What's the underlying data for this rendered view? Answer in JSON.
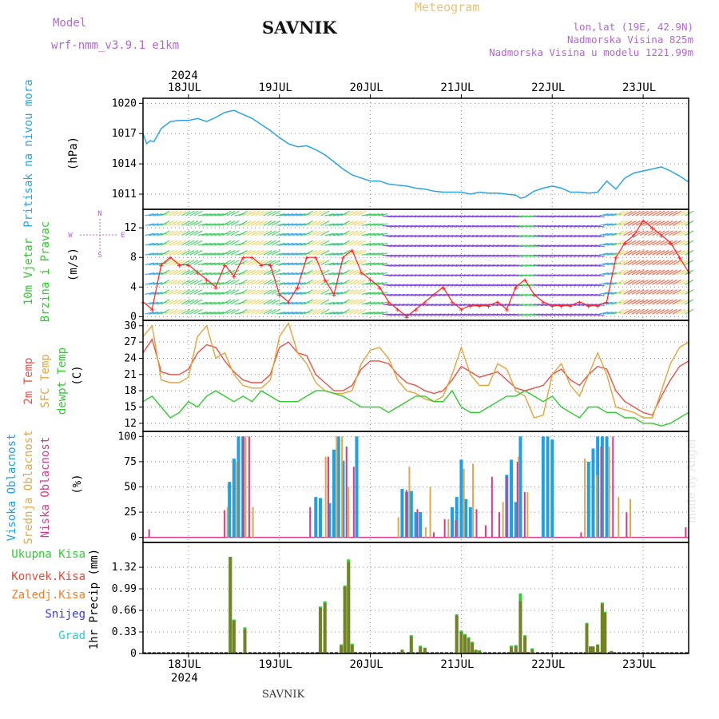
{
  "header": {
    "model_label": "Model",
    "model_name": "wrf-nmm_v3.9.1 e1km",
    "title": "SAVNIK",
    "meteogram": "Meteogram",
    "lonlat": "lon,lat (19E, 42.9N)",
    "elevation": "Nadmorska Visina 825m",
    "model_elevation": "Nadmorska Visina u modelu 1221.99m",
    "year": "2024"
  },
  "footer": {
    "station": "SAVNIK",
    "credit": "made by Angel"
  },
  "colors": {
    "pressure": "#2aa4e6",
    "temp2m": "#e8524a",
    "sfc": "#e3a43a",
    "dewpt": "#2ecc2e",
    "cloud_high": "#1e9fe6",
    "cloud_mid": "#e0a84a",
    "cloud_low": "#d63a8a",
    "rain_total": "#33cc33",
    "rain_conv": "#e84a3a",
    "rain_frz": "#f08030",
    "snow": "#3a3ae0",
    "graupel": "#30c8c8",
    "wind_trace": "#ff2020"
  },
  "chart_data": [
    {
      "type": "line",
      "panel": "pressure",
      "ylabel_lines": [
        "Pritisak na nivou mora",
        "(hPa)"
      ],
      "x_tick_labels": [
        "18JUL",
        "19JUL",
        "20JUL",
        "21JUL",
        "22JUL",
        "23JUL"
      ],
      "x_range_days": [
        -0.5,
        5.5
      ],
      "ylim": [
        1009.5,
        1020.5
      ],
      "yticks": [
        1011,
        1014,
        1017,
        1020
      ],
      "grid": true,
      "series": [
        {
          "x": [
            -0.5,
            -0.46,
            -0.42,
            -0.38,
            -0.3,
            -0.2,
            -0.1,
            0,
            0.1,
            0.2,
            0.3,
            0.4,
            0.5,
            0.6,
            0.7,
            0.8,
            0.9,
            1.0,
            1.1,
            1.2,
            1.3,
            1.4,
            1.5,
            1.6,
            1.7,
            1.8,
            1.9,
            2.0,
            2.1,
            2.2,
            2.3,
            2.4,
            2.5,
            2.6,
            2.7,
            2.8,
            2.9,
            3.0,
            3.1,
            3.2,
            3.3,
            3.4,
            3.5,
            3.6,
            3.65,
            3.7,
            3.8,
            3.9,
            4.0,
            4.1,
            4.2,
            4.3,
            4.4,
            4.5,
            4.6,
            4.7,
            4.8,
            4.9,
            5.0,
            5.1,
            5.2,
            5.3,
            5.4,
            5.5
          ],
          "y": [
            1017,
            1016,
            1016.3,
            1016.2,
            1017.5,
            1018.2,
            1018.3,
            1018.3,
            1018.5,
            1018.2,
            1018.6,
            1019.1,
            1019.3,
            1018.9,
            1018.5,
            1017.9,
            1017.3,
            1016.6,
            1016,
            1015.7,
            1015.8,
            1015.4,
            1014.9,
            1014.2,
            1013.5,
            1012.9,
            1012.6,
            1012.3,
            1012.3,
            1012.0,
            1011.9,
            1011.8,
            1011.6,
            1011.5,
            1011.3,
            1011.2,
            1011.2,
            1011.2,
            1011.0,
            1011.2,
            1011.1,
            1011.1,
            1011.0,
            1010.9,
            1010.6,
            1010.7,
            1011.3,
            1011.6,
            1011.8,
            1011.6,
            1011.2,
            1011.2,
            1011.1,
            1011.2,
            1012.3,
            1011.5,
            1012.6,
            1013.1,
            1013.3,
            1013.5,
            1013.7,
            1013.3,
            1012.8,
            1012.2
          ]
        }
      ]
    },
    {
      "type": "line",
      "panel": "wind",
      "ylabel_lines": [
        "10m Vjetar",
        "Brzina i Pravac",
        "(m/s)"
      ],
      "compass": [
        "N",
        "W",
        "E",
        "S"
      ],
      "ylim": [
        -0.5,
        14.5
      ],
      "yticks": [
        0,
        4,
        8,
        12
      ],
      "series": [
        {
          "name": "speed",
          "x": [
            -0.5,
            -0.4,
            -0.3,
            -0.2,
            -0.1,
            0,
            0.1,
            0.2,
            0.3,
            0.4,
            0.5,
            0.6,
            0.7,
            0.8,
            0.9,
            1.0,
            1.1,
            1.2,
            1.3,
            1.4,
            1.5,
            1.6,
            1.7,
            1.8,
            1.9,
            2.0,
            2.1,
            2.2,
            2.3,
            2.4,
            2.5,
            2.6,
            2.7,
            2.8,
            2.9,
            3.0,
            3.1,
            3.2,
            3.3,
            3.4,
            3.5,
            3.6,
            3.7,
            3.8,
            3.9,
            4.0,
            4.1,
            4.2,
            4.3,
            4.4,
            4.5,
            4.6,
            4.7,
            4.8,
            4.9,
            5.0,
            5.1,
            5.2,
            5.3,
            5.4,
            5.5
          ],
          "y": [
            2,
            1,
            7,
            8,
            7,
            7,
            6,
            5,
            4,
            7,
            5.5,
            8,
            8,
            7,
            7,
            3,
            2,
            4,
            8,
            8,
            5,
            3,
            8,
            9,
            6,
            5,
            4,
            2,
            1,
            0,
            1,
            2,
            3,
            4,
            2,
            1,
            1.5,
            1.5,
            1.5,
            2,
            1,
            4,
            5,
            3,
            2,
            1.5,
            1.5,
            1.5,
            2,
            1.5,
            1.5,
            2,
            8,
            10,
            11,
            13,
            12,
            11,
            10,
            8,
            6
          ]
        }
      ]
    },
    {
      "type": "line",
      "panel": "temperature",
      "ylabel_lines": [
        "2m Temp",
        "SFC Temp",
        "dewpt Temp",
        "(C)"
      ],
      "ylim": [
        10.5,
        31
      ],
      "yticks": [
        12,
        15,
        18,
        21,
        24,
        27,
        30
      ],
      "series": [
        {
          "name": "2m Temp",
          "x": [
            -0.5,
            -0.4,
            -0.3,
            -0.2,
            -0.1,
            0,
            0.1,
            0.2,
            0.3,
            0.4,
            0.5,
            0.6,
            0.7,
            0.8,
            0.9,
            1.0,
            1.1,
            1.2,
            1.3,
            1.4,
            1.5,
            1.6,
            1.7,
            1.8,
            1.9,
            2.0,
            2.1,
            2.2,
            2.3,
            2.4,
            2.5,
            2.6,
            2.7,
            2.8,
            2.9,
            3.0,
            3.1,
            3.2,
            3.3,
            3.4,
            3.5,
            3.6,
            3.7,
            3.8,
            3.9,
            4.0,
            4.1,
            4.2,
            4.3,
            4.4,
            4.5,
            4.6,
            4.7,
            4.8,
            4.9,
            5.0,
            5.1,
            5.2,
            5.3,
            5.4,
            5.5
          ],
          "y": [
            25,
            27.5,
            21.5,
            21,
            21,
            22,
            25,
            26.5,
            26,
            23.5,
            21.5,
            20,
            19.5,
            19.5,
            21,
            26,
            27,
            25,
            24.5,
            21,
            19.5,
            18,
            18,
            19,
            22,
            23.5,
            23.5,
            23,
            21,
            19.5,
            19,
            18,
            17.5,
            18,
            20,
            22.5,
            21.5,
            20.5,
            21,
            21.5,
            20,
            18.5,
            18,
            18.5,
            19,
            21,
            22,
            20,
            19,
            21,
            22.5,
            22,
            18,
            16,
            15,
            14,
            13.5,
            17,
            20,
            22.5,
            23.5
          ]
        },
        {
          "name": "SFC Temp",
          "x": [
            -0.5,
            -0.4,
            -0.3,
            -0.2,
            -0.1,
            0,
            0.1,
            0.2,
            0.3,
            0.4,
            0.5,
            0.6,
            0.7,
            0.8,
            0.9,
            1.0,
            1.1,
            1.2,
            1.3,
            1.4,
            1.5,
            1.6,
            1.7,
            1.8,
            1.9,
            2.0,
            2.1,
            2.2,
            2.3,
            2.4,
            2.5,
            2.6,
            2.7,
            2.8,
            2.9,
            3.0,
            3.1,
            3.2,
            3.3,
            3.4,
            3.5,
            3.6,
            3.7,
            3.8,
            3.9,
            4.0,
            4.1,
            4.2,
            4.3,
            4.4,
            4.5,
            4.6,
            4.7,
            4.8,
            4.9,
            5.0,
            5.1,
            5.2,
            5.3,
            5.4,
            5.5
          ],
          "y": [
            28,
            30,
            20,
            19.5,
            19.5,
            20.5,
            28,
            30,
            24,
            25,
            21,
            19,
            18.5,
            18.5,
            20,
            28,
            30.5,
            25,
            23,
            19.5,
            18,
            17.5,
            17.5,
            18,
            23,
            25.5,
            26,
            24,
            20,
            18,
            17.5,
            16.5,
            16,
            17,
            21,
            26,
            21,
            19,
            19,
            23,
            22,
            18,
            17,
            13,
            13.5,
            21,
            23,
            19,
            17,
            21,
            25,
            21,
            15,
            14.5,
            14,
            13,
            13,
            18,
            23,
            26,
            27
          ]
        },
        {
          "name": "dewpt Temp",
          "x": [
            -0.5,
            -0.4,
            -0.3,
            -0.2,
            -0.1,
            0,
            0.1,
            0.2,
            0.3,
            0.4,
            0.5,
            0.6,
            0.7,
            0.8,
            0.9,
            1.0,
            1.1,
            1.2,
            1.3,
            1.4,
            1.5,
            1.6,
            1.7,
            1.8,
            1.9,
            2.0,
            2.1,
            2.2,
            2.3,
            2.4,
            2.5,
            2.6,
            2.7,
            2.8,
            2.9,
            3.0,
            3.1,
            3.2,
            3.3,
            3.4,
            3.5,
            3.6,
            3.7,
            3.8,
            3.9,
            4.0,
            4.1,
            4.2,
            4.3,
            4.4,
            4.5,
            4.6,
            4.7,
            4.8,
            4.9,
            5.0,
            5.1,
            5.2,
            5.3,
            5.4,
            5.5
          ],
          "y": [
            16,
            17,
            15,
            13,
            14,
            16,
            15,
            17,
            18,
            17,
            16,
            17,
            16,
            18,
            17,
            16,
            16,
            16,
            17,
            18,
            18,
            17.5,
            17,
            16,
            15,
            15,
            15,
            14,
            15,
            16,
            17,
            17,
            16,
            16,
            18,
            15,
            14,
            14,
            15,
            16,
            17,
            17,
            18,
            17,
            16,
            17,
            15,
            14,
            13,
            15,
            15,
            14,
            14,
            13,
            13,
            12,
            12,
            11.5,
            12,
            13,
            14
          ]
        }
      ]
    },
    {
      "type": "bar",
      "panel": "clouds",
      "ylabel_lines": [
        "Visoka Oblacnost",
        "Srednja Oblacnost",
        "Niska Oblacnost",
        "(%)"
      ],
      "ylim": [
        -5,
        105
      ],
      "yticks": [
        0,
        25,
        50,
        75,
        100
      ],
      "series": [
        {
          "name": "Visoka Oblacnost",
          "x": [
            0.45,
            0.5,
            0.55,
            0.6,
            1.4,
            1.45,
            1.55,
            1.6,
            1.65,
            1.7,
            1.85,
            2.35,
            2.4,
            2.45,
            2.5,
            2.55,
            2.9,
            2.95,
            3.0,
            3.05,
            3.1,
            3.5,
            3.55,
            3.6,
            3.65,
            3.9,
            3.95,
            4.0,
            4.4,
            4.45,
            4.5,
            4.55,
            4.6
          ],
          "y": [
            55,
            78,
            100,
            100,
            40,
            39,
            34,
            87,
            100,
            76,
            100,
            48,
            45,
            46,
            25,
            25,
            30,
            40,
            77,
            38,
            30,
            62,
            77,
            35,
            100,
            100,
            100,
            97,
            75,
            88,
            100,
            100,
            100
          ]
        },
        {
          "name": "Srednja Oblacnost",
          "x": [
            0.42,
            0.52,
            0.62,
            0.7,
            1.5,
            1.62,
            1.68,
            1.75,
            2.3,
            2.42,
            2.6,
            2.65,
            2.85,
            3.02,
            3.12,
            3.45,
            3.62,
            3.72,
            4.35,
            4.48,
            4.62,
            4.72,
            4.85
          ],
          "y": [
            30,
            75,
            100,
            30,
            80,
            100,
            100,
            50,
            20,
            70,
            10,
            50,
            18,
            68,
            73,
            35,
            80,
            45,
            78,
            62,
            90,
            40,
            38
          ]
        },
        {
          "name": "Niska Oblacnost",
          "x": [
            -0.45,
            0.38,
            0.58,
            0.65,
            1.32,
            1.52,
            1.72,
            1.8,
            2.38,
            2.5,
            2.68,
            2.8,
            2.92,
            3.15,
            3.25,
            3.32,
            3.4,
            3.48,
            3.6,
            3.68,
            4.3,
            4.52,
            4.65,
            4.8,
            5.45
          ],
          "y": [
            8,
            27,
            100,
            100,
            30,
            80,
            90,
            70,
            47,
            28,
            5,
            18,
            17,
            28,
            12,
            60,
            25,
            60,
            75,
            45,
            5,
            90,
            100,
            25,
            10
          ]
        }
      ]
    },
    {
      "type": "bar",
      "panel": "precipitation",
      "ylabel_lines": [
        "1hr Precip (mm)"
      ],
      "legend": [
        "Ukupna Kisa",
        "Konvek.Kisa",
        "Zaledj.Kisa",
        "Snijeg",
        "Grad"
      ],
      "ylim": [
        0,
        1.7
      ],
      "yticks": [
        0,
        0.33,
        0.66,
        0.99,
        1.32
      ],
      "yticklabels": [
        "0",
        "0.33",
        "0.66",
        "0.99",
        "1.32"
      ],
      "series": [
        {
          "name": "Ukupna Kisa",
          "x": [
            0.46,
            0.5,
            0.62,
            1.45,
            1.5,
            1.68,
            1.72,
            1.76,
            1.8,
            2.35,
            2.45,
            2.55,
            2.6,
            2.95,
            3.0,
            3.04,
            3.08,
            3.12,
            3.16,
            3.2,
            3.55,
            3.6,
            3.65,
            3.7,
            3.78,
            4.38,
            4.42,
            4.45,
            4.5,
            4.55,
            4.58,
            4.65
          ],
          "y": [
            1.48,
            0.52,
            0.4,
            0.72,
            0.8,
            0.14,
            1.04,
            1.44,
            0.15,
            0.06,
            0.28,
            0.12,
            0.09,
            0.6,
            0.35,
            0.3,
            0.25,
            0.18,
            0.06,
            0.05,
            0.12,
            0.13,
            0.92,
            0.28,
            0.08,
            0.47,
            0.11,
            0.11,
            0.14,
            0.78,
            0.64,
            0.04
          ]
        },
        {
          "name": "Konvek.Kisa",
          "x": [
            0.46,
            0.5,
            0.62,
            1.45,
            1.5,
            1.68,
            1.72,
            1.76,
            1.8,
            2.35,
            2.45,
            2.55,
            2.6,
            2.95,
            3.0,
            3.04,
            3.08,
            3.12,
            3.16,
            3.2,
            3.55,
            3.6,
            3.65,
            3.7,
            3.78,
            4.38,
            4.42,
            4.45,
            4.5,
            4.55,
            4.58,
            4.65
          ],
          "y": [
            1.48,
            0.5,
            0.37,
            0.7,
            0.77,
            0.12,
            1.02,
            1.4,
            0.13,
            0.05,
            0.26,
            0.1,
            0.08,
            0.58,
            0.33,
            0.28,
            0.23,
            0.16,
            0.05,
            0.04,
            0.1,
            0.11,
            0.8,
            0.26,
            0.06,
            0.45,
            0.1,
            0.1,
            0.13,
            0.76,
            0.62,
            0.03
          ]
        }
      ]
    }
  ]
}
